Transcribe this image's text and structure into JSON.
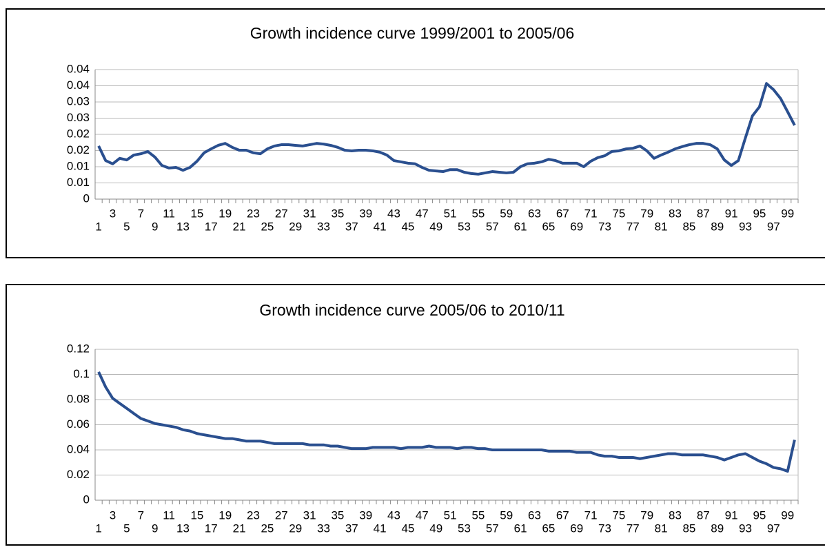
{
  "chart_data": [
    {
      "type": "line",
      "title": "Growth incidence curve 1999/2001 to 2005/06",
      "categories": [
        1,
        null,
        3,
        null,
        5,
        null,
        7,
        null,
        9,
        null,
        11,
        null,
        13,
        null,
        15,
        null,
        17,
        null,
        19,
        null,
        21,
        null,
        23,
        null,
        25,
        null,
        27,
        null,
        29,
        null,
        31,
        null,
        33,
        null,
        35,
        null,
        37,
        null,
        39,
        null,
        41,
        null,
        43,
        null,
        45,
        null,
        47,
        null,
        49,
        null,
        51,
        null,
        53,
        null,
        55,
        null,
        57,
        null,
        59,
        null,
        61,
        null,
        63,
        null,
        65,
        null,
        67,
        null,
        69,
        null,
        71,
        null,
        73,
        null,
        75,
        null,
        77,
        null,
        79,
        null,
        81,
        null,
        83,
        null,
        85,
        null,
        87,
        null,
        89,
        null,
        91,
        null,
        93,
        null,
        95,
        null,
        97,
        null,
        99,
        null
      ],
      "values": [
        0.0164,
        0.0119,
        0.0109,
        0.0126,
        0.0121,
        0.0136,
        0.014,
        0.0147,
        0.013,
        0.0104,
        0.0096,
        0.0098,
        0.0089,
        0.0098,
        0.0117,
        0.0143,
        0.0155,
        0.0166,
        0.0172,
        0.016,
        0.0151,
        0.0151,
        0.0143,
        0.014,
        0.0155,
        0.0164,
        0.0168,
        0.0168,
        0.0166,
        0.0164,
        0.0168,
        0.0172,
        0.017,
        0.0166,
        0.016,
        0.0151,
        0.0149,
        0.0151,
        0.0151,
        0.0149,
        0.0145,
        0.0136,
        0.0119,
        0.0115,
        0.0111,
        0.0109,
        0.0098,
        0.0089,
        0.0087,
        0.0085,
        0.0091,
        0.0091,
        0.0083,
        0.0079,
        0.0077,
        0.0081,
        0.0085,
        0.0083,
        0.0081,
        0.0083,
        0.01,
        0.0109,
        0.0111,
        0.0115,
        0.0123,
        0.0119,
        0.0111,
        0.0111,
        0.0111,
        0.01,
        0.0117,
        0.0128,
        0.0134,
        0.0147,
        0.0149,
        0.0155,
        0.0157,
        0.0164,
        0.0149,
        0.0126,
        0.0136,
        0.0145,
        0.0155,
        0.0162,
        0.0168,
        0.0172,
        0.0172,
        0.0168,
        0.0155,
        0.0121,
        0.0104,
        0.0119,
        0.0189,
        0.0257,
        0.0285,
        0.0357,
        0.0338,
        0.0311,
        0.027,
        0.0228
      ],
      "color": "#2a4f8f",
      "ylim": [
        0,
        0.04
      ],
      "yticks": [
        0,
        {
          "value": 0.005,
          "label": "0.01"
        },
        0.01,
        {
          "value": 0.015,
          "label": "0.02"
        },
        0.02,
        {
          "value": 0.025,
          "label": "0.03"
        },
        0.03,
        {
          "value": 0.035,
          "label": "0.04"
        },
        0.04
      ],
      "grid": true
    },
    {
      "type": "line",
      "title": "Growth incidence curve 2005/06 to 2010/11",
      "categories": [
        1,
        null,
        3,
        null,
        5,
        null,
        7,
        null,
        9,
        null,
        11,
        null,
        13,
        null,
        15,
        null,
        17,
        null,
        19,
        null,
        21,
        null,
        23,
        null,
        25,
        null,
        27,
        null,
        29,
        null,
        31,
        null,
        33,
        null,
        35,
        null,
        37,
        null,
        39,
        null,
        41,
        null,
        43,
        null,
        45,
        null,
        47,
        null,
        49,
        null,
        51,
        null,
        53,
        null,
        55,
        null,
        57,
        null,
        59,
        null,
        61,
        null,
        63,
        null,
        65,
        null,
        67,
        null,
        69,
        null,
        71,
        null,
        73,
        null,
        75,
        null,
        77,
        null,
        79,
        null,
        81,
        null,
        83,
        null,
        85,
        null,
        87,
        null,
        89,
        null,
        91,
        null,
        93,
        null,
        95,
        null,
        97,
        null,
        99,
        null
      ],
      "values": [
        0.102,
        0.09,
        0.081,
        0.077,
        0.073,
        0.069,
        0.065,
        0.063,
        0.061,
        0.06,
        0.059,
        0.058,
        0.056,
        0.055,
        0.053,
        0.052,
        0.051,
        0.05,
        0.049,
        0.049,
        0.048,
        0.047,
        0.047,
        0.047,
        0.046,
        0.045,
        0.045,
        0.045,
        0.045,
        0.045,
        0.044,
        0.044,
        0.044,
        0.043,
        0.043,
        0.042,
        0.041,
        0.041,
        0.041,
        0.042,
        0.042,
        0.042,
        0.042,
        0.041,
        0.042,
        0.042,
        0.042,
        0.043,
        0.042,
        0.042,
        0.042,
        0.041,
        0.042,
        0.042,
        0.041,
        0.041,
        0.04,
        0.04,
        0.04,
        0.04,
        0.04,
        0.04,
        0.04,
        0.04,
        0.039,
        0.039,
        0.039,
        0.039,
        0.038,
        0.038,
        0.038,
        0.036,
        0.035,
        0.035,
        0.034,
        0.034,
        0.034,
        0.033,
        0.034,
        0.035,
        0.036,
        0.037,
        0.037,
        0.036,
        0.036,
        0.036,
        0.036,
        0.035,
        0.034,
        0.032,
        0.034,
        0.036,
        0.037,
        0.034,
        0.031,
        0.029,
        0.026,
        0.025,
        0.023,
        0.048
      ],
      "color": "#2a4f8f",
      "ylim": [
        0,
        0.12
      ],
      "yticks": [
        0,
        0.02,
        0.04,
        0.06,
        0.08,
        0.1,
        0.12
      ],
      "grid": true
    }
  ]
}
